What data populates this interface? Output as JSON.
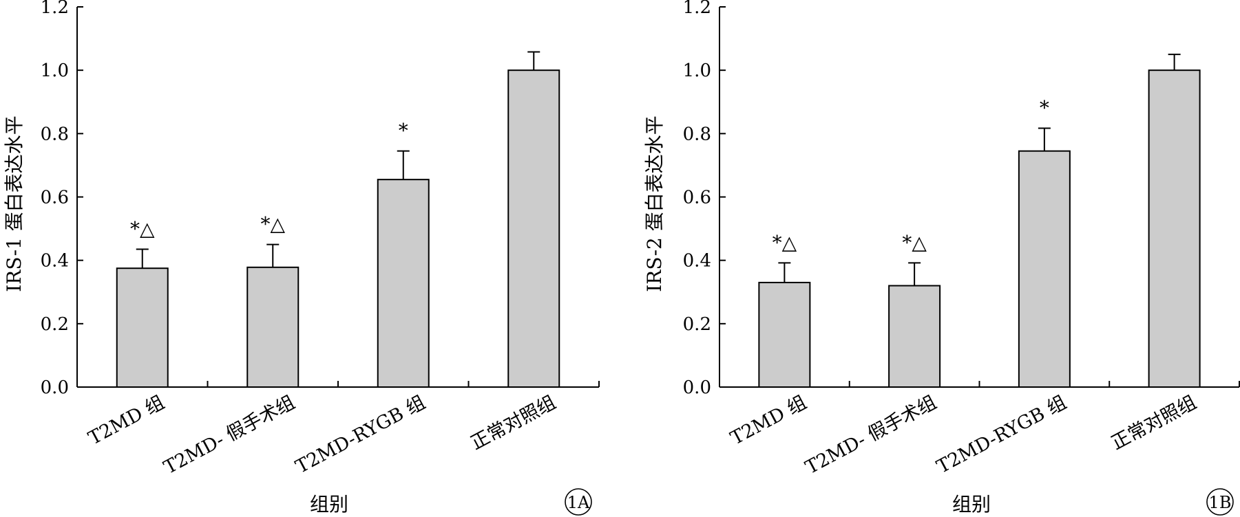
{
  "chart_data": [
    {
      "type": "bar",
      "panel_label": "1A",
      "title": "",
      "xlabel": "组别",
      "ylabel": "IRS-1 蛋白表达水平",
      "ylim": [
        0,
        1.2
      ],
      "yticks": [
        "0.0",
        "0.2",
        "0.4",
        "0.6",
        "0.8",
        "1.0",
        "1.2"
      ],
      "categories": [
        "T2MD 组",
        "T2MD- 假手术组",
        "T2MD-RYGB 组",
        "正常对照组"
      ],
      "values": [
        0.375,
        0.378,
        0.655,
        1.0
      ],
      "errors": [
        0.06,
        0.072,
        0.09,
        0.058
      ],
      "significance": [
        "*△",
        "*△",
        "*",
        ""
      ],
      "bar_color": "#cccccc"
    },
    {
      "type": "bar",
      "panel_label": "1B",
      "title": "",
      "xlabel": "组别",
      "ylabel": "IRS-2 蛋白表达水平",
      "ylim": [
        0,
        1.2
      ],
      "yticks": [
        "0.0",
        "0.2",
        "0.4",
        "0.6",
        "0.8",
        "1.0",
        "1.2"
      ],
      "categories": [
        "T2MD 组",
        "T2MD- 假手术组",
        "T2MD-RYGB 组",
        "正常对照组"
      ],
      "values": [
        0.33,
        0.32,
        0.745,
        1.0
      ],
      "errors": [
        0.062,
        0.072,
        0.072,
        0.05
      ],
      "significance": [
        "*△",
        "*△",
        "*",
        ""
      ],
      "bar_color": "#cccccc"
    }
  ]
}
